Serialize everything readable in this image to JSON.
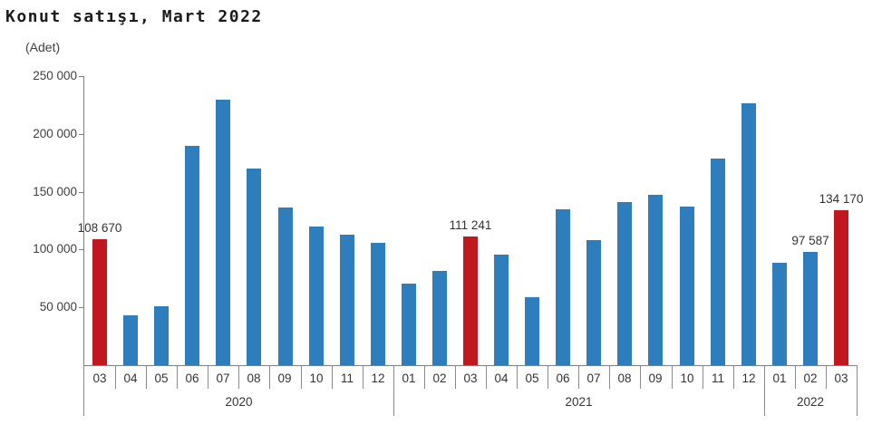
{
  "chart_data": {
    "type": "bar",
    "title": "Konut satışı, Mart 2022",
    "unit_label": "(Adet)",
    "ylabel": "(Adet)",
    "ylim": [
      0,
      250000
    ],
    "grid": false,
    "legend_position": "none",
    "yticks": [
      {
        "value": 50000,
        "label": "50 000"
      },
      {
        "value": 100000,
        "label": "100 000"
      },
      {
        "value": 150000,
        "label": "150 000"
      },
      {
        "value": 200000,
        "label": "200 000"
      },
      {
        "value": 250000,
        "label": "250 000"
      }
    ],
    "categories": [
      "03",
      "04",
      "05",
      "06",
      "07",
      "08",
      "09",
      "10",
      "11",
      "12",
      "01",
      "02",
      "03",
      "04",
      "05",
      "06",
      "07",
      "08",
      "09",
      "10",
      "11",
      "12",
      "01",
      "02",
      "03"
    ],
    "values": [
      108670,
      42783,
      50936,
      190012,
      229357,
      170408,
      136744,
      119574,
      112483,
      105981,
      70587,
      81222,
      111241,
      95863,
      59166,
      134731,
      107785,
      141400,
      147143,
      137401,
      178814,
      226503,
      88306,
      97587,
      134170
    ],
    "years": [
      {
        "label": "2020",
        "start": 0,
        "count": 10
      },
      {
        "label": "2021",
        "start": 10,
        "count": 12
      },
      {
        "label": "2022",
        "start": 22,
        "count": 3
      }
    ],
    "bar_color": "#2E7DBD",
    "highlight_color": "#C0181E",
    "highlight_indices": [
      0,
      12,
      24
    ],
    "value_labels": [
      {
        "index": 0,
        "text": "108 670"
      },
      {
        "index": 12,
        "text": "111 241"
      },
      {
        "index": 23,
        "text": "97 587"
      },
      {
        "index": 24,
        "text": "134 170"
      }
    ],
    "axis_color": "#7f7f7f"
  }
}
